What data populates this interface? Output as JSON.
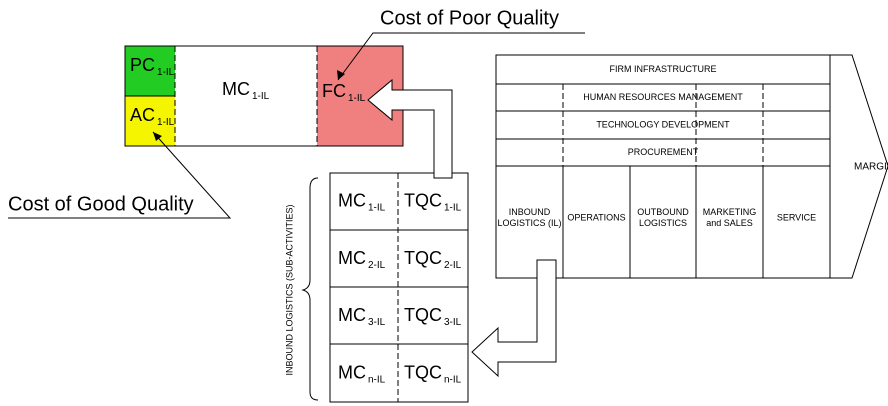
{
  "callouts": {
    "poor": "Cost of Poor Quality",
    "good": "Cost of Good Quality"
  },
  "cost_boxes": [
    {
      "main": "PC",
      "sub": "1-IL"
    },
    {
      "main": "AC",
      "sub": "1-IL"
    },
    {
      "main": "MC",
      "sub": "1-IL"
    },
    {
      "main": "FC",
      "sub": "1-IL"
    }
  ],
  "value_chain": {
    "support": [
      "FIRM INFRASTRUCTURE",
      "HUMAN RESOURCES MANAGEMENT",
      "TECHNOLOGY DEVELOPMENT",
      "PROCUREMENT"
    ],
    "primary": [
      [
        "INBOUND",
        "LOGISTICS (IL)"
      ],
      [
        "OPERATIONS"
      ],
      [
        "OUTBOUND",
        "LOGISTICS"
      ],
      [
        "MARKETING",
        "and SALES"
      ],
      [
        "SERVICE"
      ]
    ],
    "margin": "MARGIN"
  },
  "sub_activities": {
    "label": "INBOUND LOGISTICS (SUB-ACTIVITIES)",
    "rows": [
      [
        {
          "main": "MC",
          "sub": "1-IL"
        },
        {
          "main": "TQC",
          "sub": "1-IL"
        }
      ],
      [
        {
          "main": "MC",
          "sub": "2-IL"
        },
        {
          "main": "TQC",
          "sub": "2-IL"
        }
      ],
      [
        {
          "main": "MC",
          "sub": "3-IL"
        },
        {
          "main": "TQC",
          "sub": "3-IL"
        }
      ],
      [
        {
          "main": "MC",
          "sub": "n-IL"
        },
        {
          "main": "TQC",
          "sub": "n-IL"
        }
      ]
    ]
  }
}
